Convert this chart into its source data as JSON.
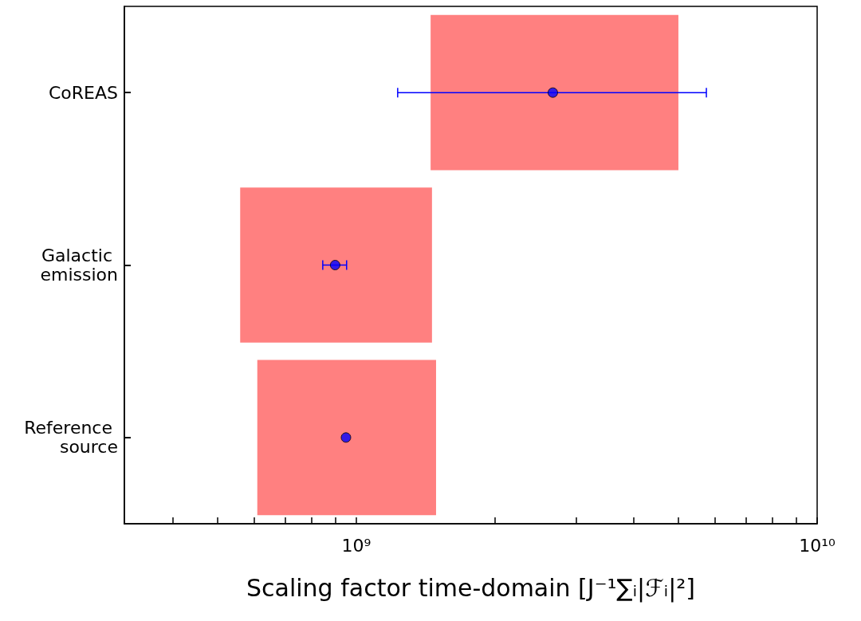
{
  "chart_data": {
    "type": "bar",
    "orientation": "horizontal",
    "xlabel": "Scaling factor time-domain [J⁻¹∑ᵢ|ℱᵢ|²]",
    "categories": [
      "CoREAS",
      "Galactic emission",
      "Reference source"
    ],
    "log": "x",
    "xlim": [
      314000000,
      10000000000
    ],
    "xticks": [
      {
        "value": 400000000,
        "label": null
      },
      {
        "value": 500000000,
        "label": null
      },
      {
        "value": 600000000,
        "label": null
      },
      {
        "value": 700000000,
        "label": null
      },
      {
        "value": 800000000,
        "label": null
      },
      {
        "value": 900000000,
        "label": null
      },
      {
        "value": 1000000000,
        "label": "10⁹"
      },
      {
        "value": 2000000000,
        "label": null
      },
      {
        "value": 3000000000,
        "label": null
      },
      {
        "value": 4000000000,
        "label": null
      },
      {
        "value": 5000000000,
        "label": null
      },
      {
        "value": 6000000000,
        "label": null
      },
      {
        "value": 7000000000,
        "label": null
      },
      {
        "value": 8000000000,
        "label": null
      },
      {
        "value": 9000000000,
        "label": null
      },
      {
        "value": 10000000000,
        "label": "10¹⁰"
      }
    ],
    "grid": false,
    "series": [
      {
        "color": "#ff8080",
        "base": [
          1450000000,
          560000000,
          610000000
        ],
        "values": [
          3550000000,
          900000000,
          880000000
        ]
      },
      {
        "type": "scatter",
        "color": "#0000ff",
        "marker": "circle",
        "values": [
          2670000000,
          900000000,
          950000000
        ],
        "errors": [
          [
            1230000000,
            5750000000
          ],
          [
            846000000,
            953000000
          ],
          null
        ]
      }
    ]
  }
}
